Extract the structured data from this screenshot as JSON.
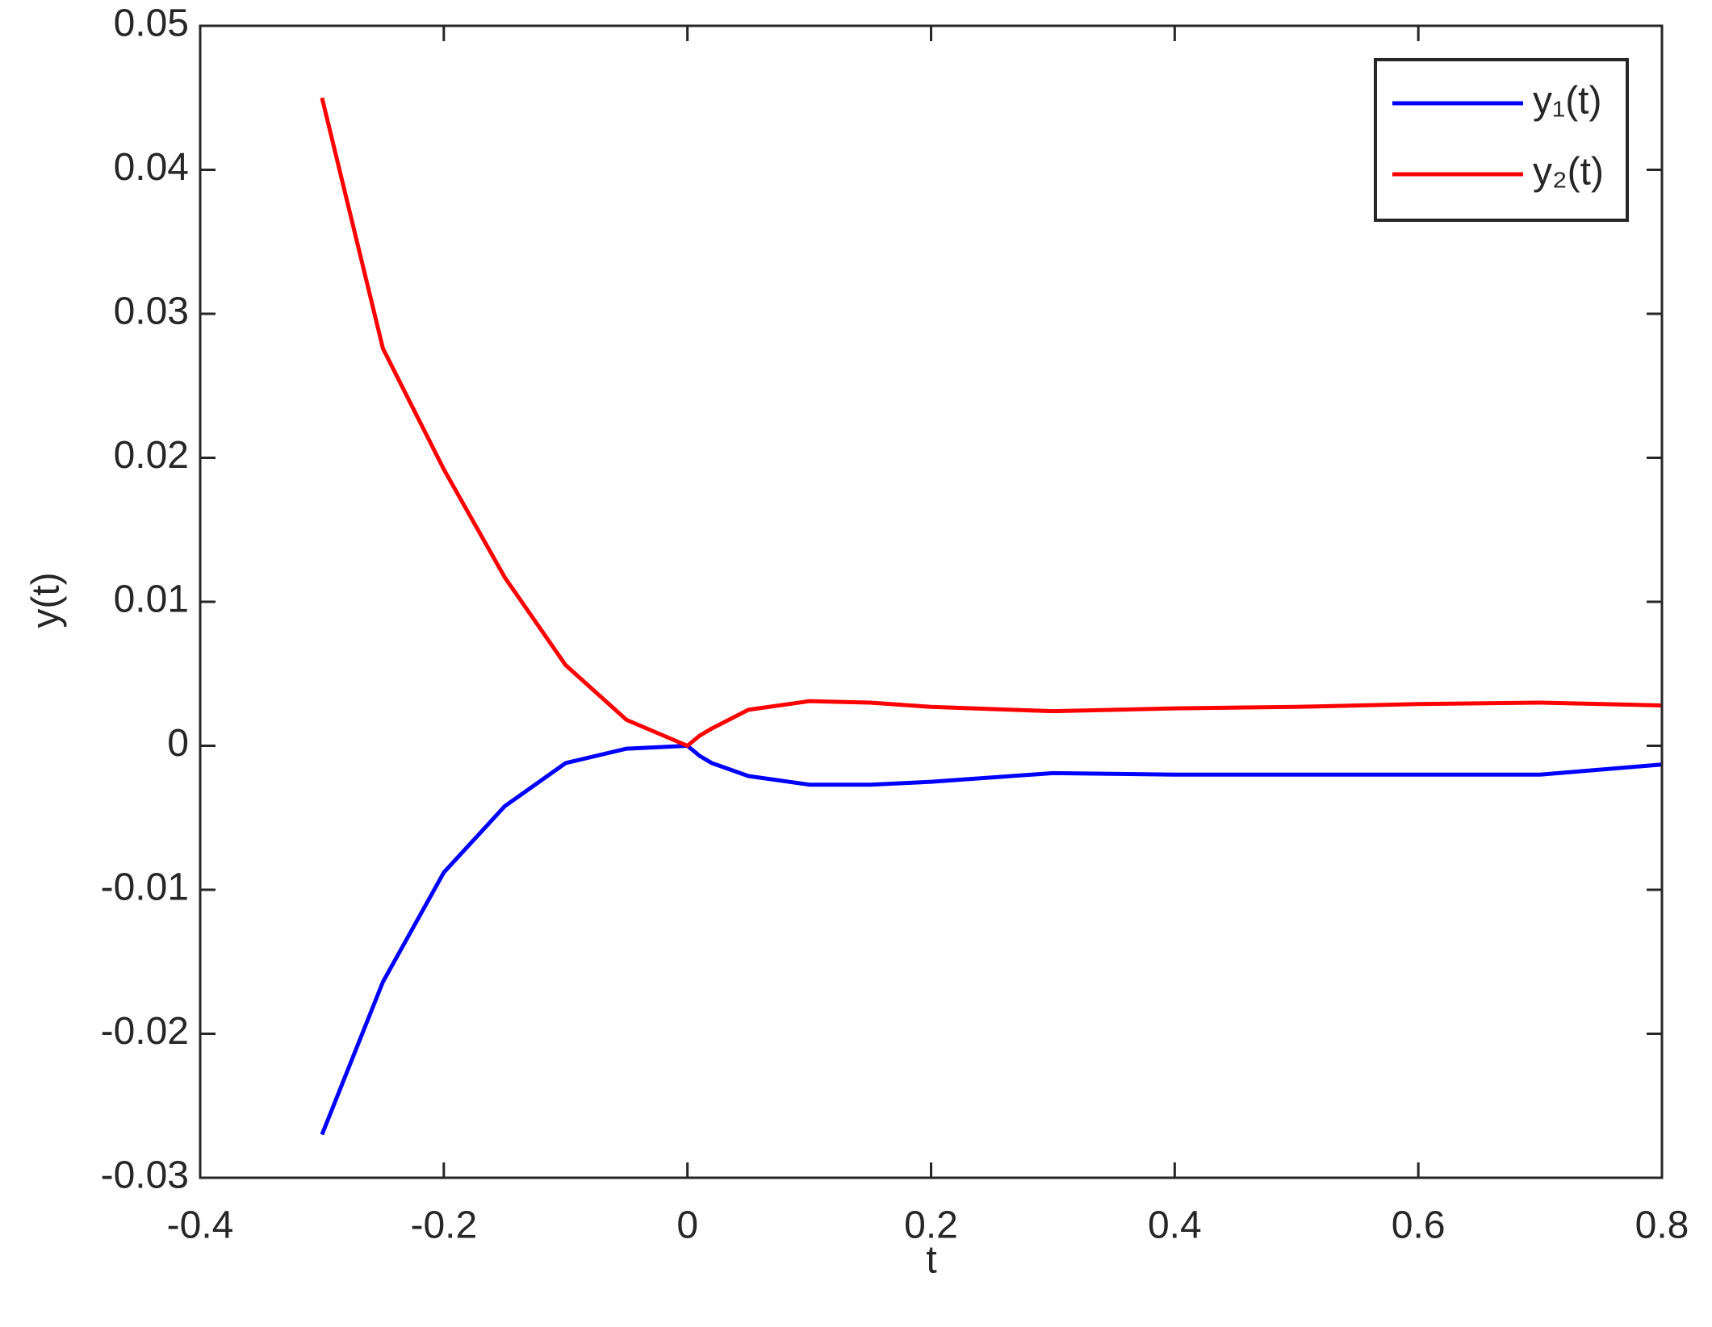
{
  "chart_data": {
    "type": "line",
    "xlabel": "t",
    "ylabel": "y(t)",
    "x": [
      -0.3,
      -0.25,
      -0.2,
      -0.15,
      -0.1,
      -0.05,
      0,
      0.01,
      0.02,
      0.05,
      0.1,
      0.15,
      0.2,
      0.3,
      0.4,
      0.5,
      0.6,
      0.7,
      0.8
    ],
    "series": [
      {
        "name": "y₁(t)",
        "color": "#0000ff",
        "values": [
          -0.027,
          -0.0164,
          -0.0088,
          -0.0042,
          -0.0012,
          -0.0002,
          0,
          -0.0007,
          -0.0012,
          -0.0021,
          -0.0027,
          -0.0027,
          -0.0025,
          -0.0019,
          -0.002,
          -0.002,
          -0.002,
          -0.002,
          -0.0013
        ]
      },
      {
        "name": "y₂(t)",
        "color": "#ff0000",
        "values": [
          0.045,
          0.0276,
          0.0192,
          0.0117,
          0.0056,
          0.0018,
          0,
          0.0007,
          0.0012,
          0.0025,
          0.0031,
          0.003,
          0.0027,
          0.0024,
          0.0026,
          0.0027,
          0.0029,
          0.003,
          0.0028
        ]
      }
    ],
    "xlim": [
      -0.4,
      0.8
    ],
    "xticks": [
      -0.4,
      -0.2,
      0,
      0.2,
      0.4,
      0.6,
      0.8
    ],
    "ylim": [
      -0.03,
      0.05
    ],
    "yticks": [
      -0.03,
      -0.02,
      -0.01,
      0,
      0.01,
      0.02,
      0.03,
      0.04,
      0.05
    ],
    "legend": "top-right"
  }
}
